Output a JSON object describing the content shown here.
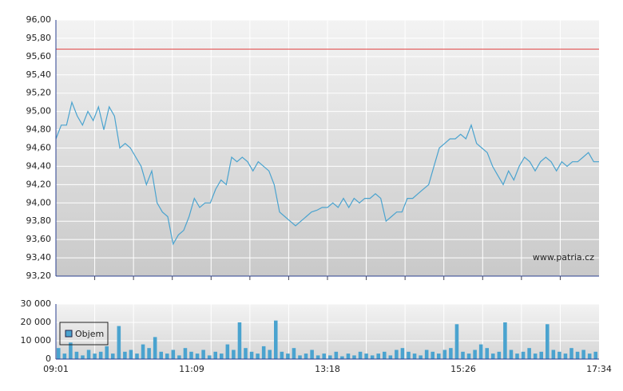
{
  "chart_data": [
    {
      "type": "line",
      "watermark": "www.patria.cz",
      "series": [
        {
          "color": "#4aa3cf",
          "values": [
            94.7,
            94.85,
            94.85,
            95.1,
            94.95,
            94.85,
            95.0,
            94.9,
            95.05,
            94.8,
            95.05,
            94.95,
            94.6,
            94.65,
            94.6,
            94.5,
            94.4,
            94.2,
            94.35,
            94.0,
            93.9,
            93.85,
            93.55,
            93.65,
            93.7,
            93.85,
            94.05,
            93.95,
            94.0,
            94.0,
            94.15,
            94.25,
            94.2,
            94.5,
            94.45,
            94.5,
            94.45,
            94.35,
            94.45,
            94.4,
            94.35,
            94.2,
            93.9,
            93.85,
            93.8,
            93.75,
            93.8,
            93.85,
            93.9,
            93.92,
            93.95,
            93.95,
            94.0,
            93.95,
            94.05,
            93.95,
            94.05,
            94.0,
            94.05,
            94.05,
            94.1,
            94.05,
            93.8,
            93.85,
            93.9,
            93.9,
            94.05,
            94.05,
            94.1,
            94.15,
            94.2,
            94.4,
            94.6,
            94.65,
            94.7,
            94.7,
            94.75,
            94.7,
            94.85,
            94.65,
            94.6,
            94.55,
            94.4,
            94.3,
            94.2,
            94.35,
            94.25,
            94.4,
            94.5,
            94.45,
            94.35,
            94.45,
            94.5,
            94.45,
            94.35,
            94.45,
            94.4,
            94.45,
            94.45,
            94.5,
            94.55,
            94.45,
            94.45
          ]
        }
      ],
      "reference_line": {
        "value": 95.68,
        "color": "#e04040"
      },
      "ylim": [
        93.2,
        96.0
      ],
      "yticks": [
        {
          "value": 93.2,
          "label": "93,20"
        },
        {
          "value": 93.4,
          "label": "93,40"
        },
        {
          "value": 93.6,
          "label": "93,60"
        },
        {
          "value": 93.8,
          "label": "93,80"
        },
        {
          "value": 94.0,
          "label": "94,00"
        },
        {
          "value": 94.2,
          "label": "94,20"
        },
        {
          "value": 94.4,
          "label": "94,40"
        },
        {
          "value": 94.6,
          "label": "94,60"
        },
        {
          "value": 94.8,
          "label": "94,80"
        },
        {
          "value": 95.0,
          "label": "95,00"
        },
        {
          "value": 95.2,
          "label": "95,20"
        },
        {
          "value": 95.4,
          "label": "95,40"
        },
        {
          "value": 95.6,
          "label": "95,60"
        },
        {
          "value": 95.8,
          "label": "95,80"
        },
        {
          "value": 96.0,
          "label": "96,00"
        }
      ],
      "grid": true
    },
    {
      "type": "bar",
      "legend": "Objem",
      "color": "#4aa3cf",
      "values": [
        6000,
        3000,
        9000,
        4000,
        2000,
        5000,
        3000,
        4000,
        7000,
        3000,
        18000,
        4000,
        5000,
        3000,
        8000,
        6000,
        12000,
        4000,
        3000,
        5000,
        2000,
        6000,
        4000,
        3000,
        5000,
        2000,
        4000,
        3000,
        8000,
        5000,
        20000,
        6000,
        4000,
        3000,
        7000,
        5000,
        21000,
        4000,
        3000,
        6000,
        2000,
        3000,
        5000,
        2000,
        3000,
        2000,
        4000,
        1500,
        3000,
        2000,
        4000,
        3000,
        2000,
        3000,
        4000,
        2000,
        5000,
        6000,
        4000,
        3000,
        2000,
        5000,
        4000,
        3000,
        5000,
        6000,
        19000,
        4000,
        3000,
        5000,
        8000,
        6000,
        3000,
        4000,
        20000,
        5000,
        3000,
        4000,
        6000,
        3000,
        4000,
        19000,
        5000,
        4000,
        3000,
        6000,
        4000,
        5000,
        3000,
        4000
      ],
      "ylim": [
        0,
        30000
      ],
      "yticks": [
        {
          "value": 0,
          "label": "0"
        },
        {
          "value": 10000,
          "label": "10 000"
        },
        {
          "value": 20000,
          "label": "20 000"
        },
        {
          "value": 30000,
          "label": "30 000"
        }
      ],
      "xlim": [
        "09:01",
        "17:34"
      ],
      "xticks": [
        "09:01",
        "11:09",
        "13:18",
        "15:26",
        "17:34"
      ],
      "grid": true
    }
  ]
}
